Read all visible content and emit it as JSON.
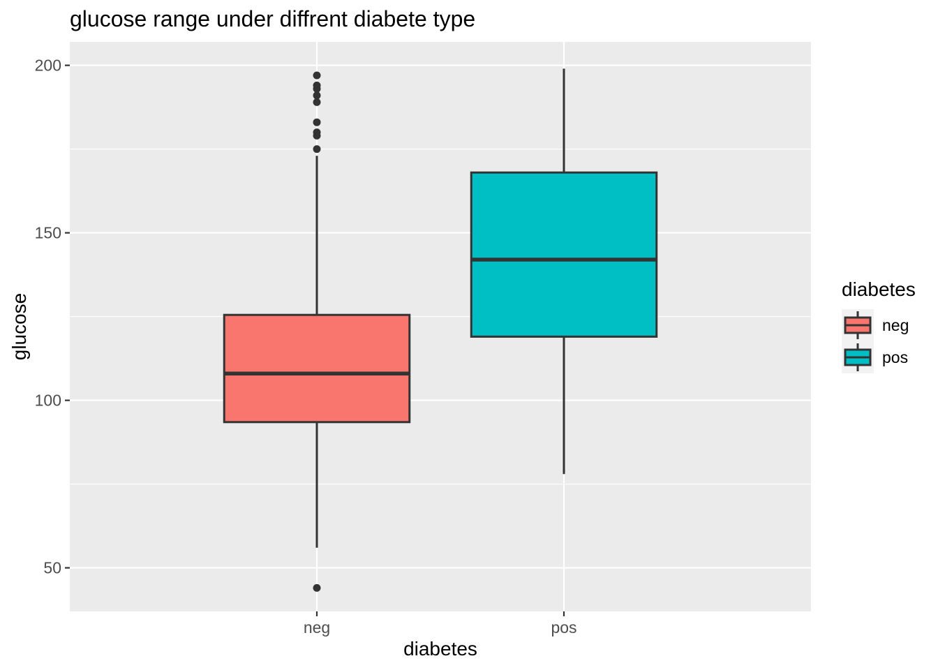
{
  "chart_data": {
    "type": "box",
    "title": "glucose range under diffrent diabete type",
    "xlabel": "diabetes",
    "ylabel": "glucose",
    "categories": [
      "neg",
      "pos"
    ],
    "ylim": [
      37,
      207
    ],
    "y_ticks": [
      50,
      100,
      150,
      200
    ],
    "grid": true,
    "legend": {
      "title": "diabetes",
      "position": "right",
      "entries": [
        "neg",
        "pos"
      ]
    },
    "series": [
      {
        "name": "neg",
        "color": "#F8766D",
        "whisker_low": 56,
        "q1": 93.5,
        "median": 108,
        "q3": 125.5,
        "whisker_high": 173,
        "outliers": [
          44,
          175,
          179,
          180,
          183,
          189,
          191,
          193,
          194,
          197
        ]
      },
      {
        "name": "pos",
        "color": "#00BFC4",
        "whisker_low": 78,
        "q1": 119,
        "median": 142,
        "q3": 168,
        "whisker_high": 199,
        "outliers": []
      }
    ]
  }
}
